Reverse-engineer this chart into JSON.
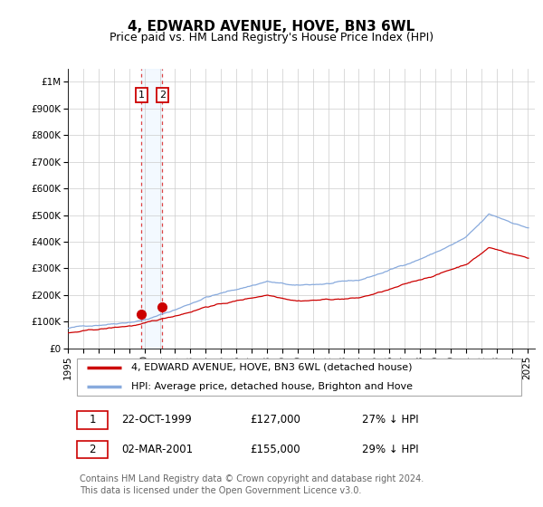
{
  "title": "4, EDWARD AVENUE, HOVE, BN3 6WL",
  "subtitle": "Price paid vs. HM Land Registry's House Price Index (HPI)",
  "ylabel_ticks": [
    "£0",
    "£100K",
    "£200K",
    "£300K",
    "£400K",
    "£500K",
    "£600K",
    "£700K",
    "£800K",
    "£900K",
    "£1M"
  ],
  "ytick_values": [
    0,
    100000,
    200000,
    300000,
    400000,
    500000,
    600000,
    700000,
    800000,
    900000,
    1000000
  ],
  "ylim": [
    0,
    1050000
  ],
  "xlim_start": 1995.3,
  "xlim_end": 2025.5,
  "xtick_years": [
    1995,
    1996,
    1997,
    1998,
    1999,
    2000,
    2001,
    2002,
    2003,
    2004,
    2005,
    2006,
    2007,
    2008,
    2009,
    2010,
    2011,
    2012,
    2013,
    2014,
    2015,
    2016,
    2017,
    2018,
    2019,
    2020,
    2021,
    2022,
    2023,
    2024,
    2025
  ],
  "sale1_x": 1999.81,
  "sale1_y": 127000,
  "sale1_label": "1",
  "sale2_x": 2001.17,
  "sale2_y": 155000,
  "sale2_label": "2",
  "sale_color": "#cc0000",
  "hpi_color": "#88aadd",
  "red_line_color": "#cc0000",
  "marker_size": 7,
  "vline_color": "#dd4444",
  "vline_style": "-.",
  "vspan_color": "#ddeeff",
  "vspan_alpha": 0.35,
  "legend_line1": "4, EDWARD AVENUE, HOVE, BN3 6WL (detached house)",
  "legend_line2": "HPI: Average price, detached house, Brighton and Hove",
  "table_rows": [
    {
      "num": "1",
      "date": "22-OCT-1999",
      "price": "£127,000",
      "hpi": "27% ↓ HPI"
    },
    {
      "num": "2",
      "date": "02-MAR-2001",
      "price": "£155,000",
      "hpi": "29% ↓ HPI"
    }
  ],
  "footnote": "Contains HM Land Registry data © Crown copyright and database right 2024.\nThis data is licensed under the Open Government Licence v3.0.",
  "bg_color": "#ffffff",
  "grid_color": "#cccccc",
  "title_fontsize": 11,
  "subtitle_fontsize": 9,
  "tick_fontsize": 7.5,
  "legend_fontsize": 8,
  "table_fontsize": 8.5,
  "footnote_fontsize": 7
}
